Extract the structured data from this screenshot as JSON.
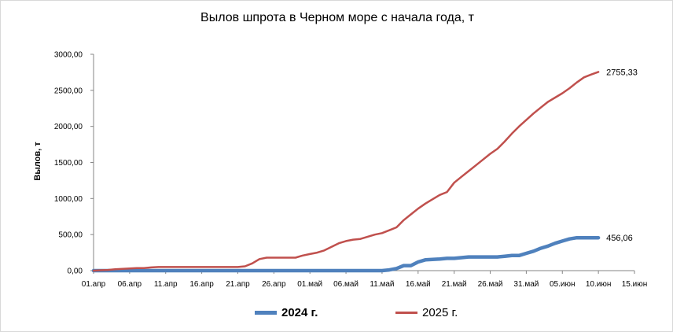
{
  "chart_data": {
    "type": "line",
    "title": "Вылов шпрота в Черном море с начала года, т",
    "ylabel": "Вылов, т",
    "xlabel": "",
    "ylim": [
      0,
      3000
    ],
    "yticks": [
      "0,00",
      "500,00",
      "1000,00",
      "1500,00",
      "2000,00",
      "2500,00",
      "3000,00"
    ],
    "xticks": [
      "01.апр",
      "06.апр",
      "11.апр",
      "16.апр",
      "21.апр",
      "26.апр",
      "01.май",
      "06.май",
      "11.май",
      "16.май",
      "21.май",
      "26.май",
      "31.май",
      "05.июн",
      "10.июн",
      "15.июн"
    ],
    "x_days_range": [
      0,
      75
    ],
    "legend_position": "bottom",
    "grid": false,
    "series": [
      {
        "name": "2024 г.",
        "color": "#4f81bd",
        "end_label": "456,06",
        "x": [
          0,
          40,
          41,
          42,
          43,
          44,
          45,
          46,
          47,
          48,
          49,
          50,
          51,
          52,
          53,
          54,
          55,
          56,
          57,
          58,
          59,
          60,
          61,
          62,
          63,
          64,
          65,
          66,
          67,
          68,
          69,
          70
        ],
        "y": [
          0,
          0,
          10,
          30,
          70,
          70,
          120,
          150,
          155,
          160,
          170,
          170,
          180,
          190,
          190,
          190,
          190,
          190,
          200,
          210,
          210,
          240,
          270,
          310,
          340,
          380,
          410,
          440,
          456.06,
          456.06,
          456.06,
          456.06
        ]
      },
      {
        "name": "2025 г.",
        "color": "#c0504d",
        "end_label": "2755,33",
        "x": [
          0,
          1,
          2,
          3,
          4,
          5,
          6,
          7,
          8,
          9,
          10,
          11,
          12,
          13,
          14,
          15,
          16,
          17,
          18,
          19,
          20,
          21,
          22,
          23,
          24,
          25,
          26,
          27,
          28,
          29,
          30,
          31,
          32,
          33,
          34,
          35,
          36,
          37,
          38,
          39,
          40,
          41,
          42,
          43,
          44,
          45,
          46,
          47,
          48,
          49,
          50,
          51,
          52,
          53,
          54,
          55,
          56,
          57,
          58,
          59,
          60,
          61,
          62,
          63,
          64,
          65,
          66,
          67,
          68,
          69,
          70
        ],
        "y": [
          0,
          5,
          10,
          20,
          25,
          30,
          35,
          35,
          45,
          50,
          50,
          50,
          50,
          50,
          50,
          50,
          50,
          50,
          50,
          50,
          50,
          60,
          100,
          160,
          180,
          180,
          180,
          180,
          180,
          210,
          230,
          250,
          280,
          330,
          380,
          410,
          430,
          440,
          470,
          500,
          520,
          560,
          600,
          700,
          780,
          860,
          930,
          990,
          1050,
          1090,
          1220,
          1300,
          1380,
          1460,
          1540,
          1620,
          1690,
          1790,
          1900,
          2000,
          2090,
          2180,
          2260,
          2340,
          2400,
          2460,
          2530,
          2610,
          2680,
          2720,
          2755.33
        ]
      }
    ]
  }
}
